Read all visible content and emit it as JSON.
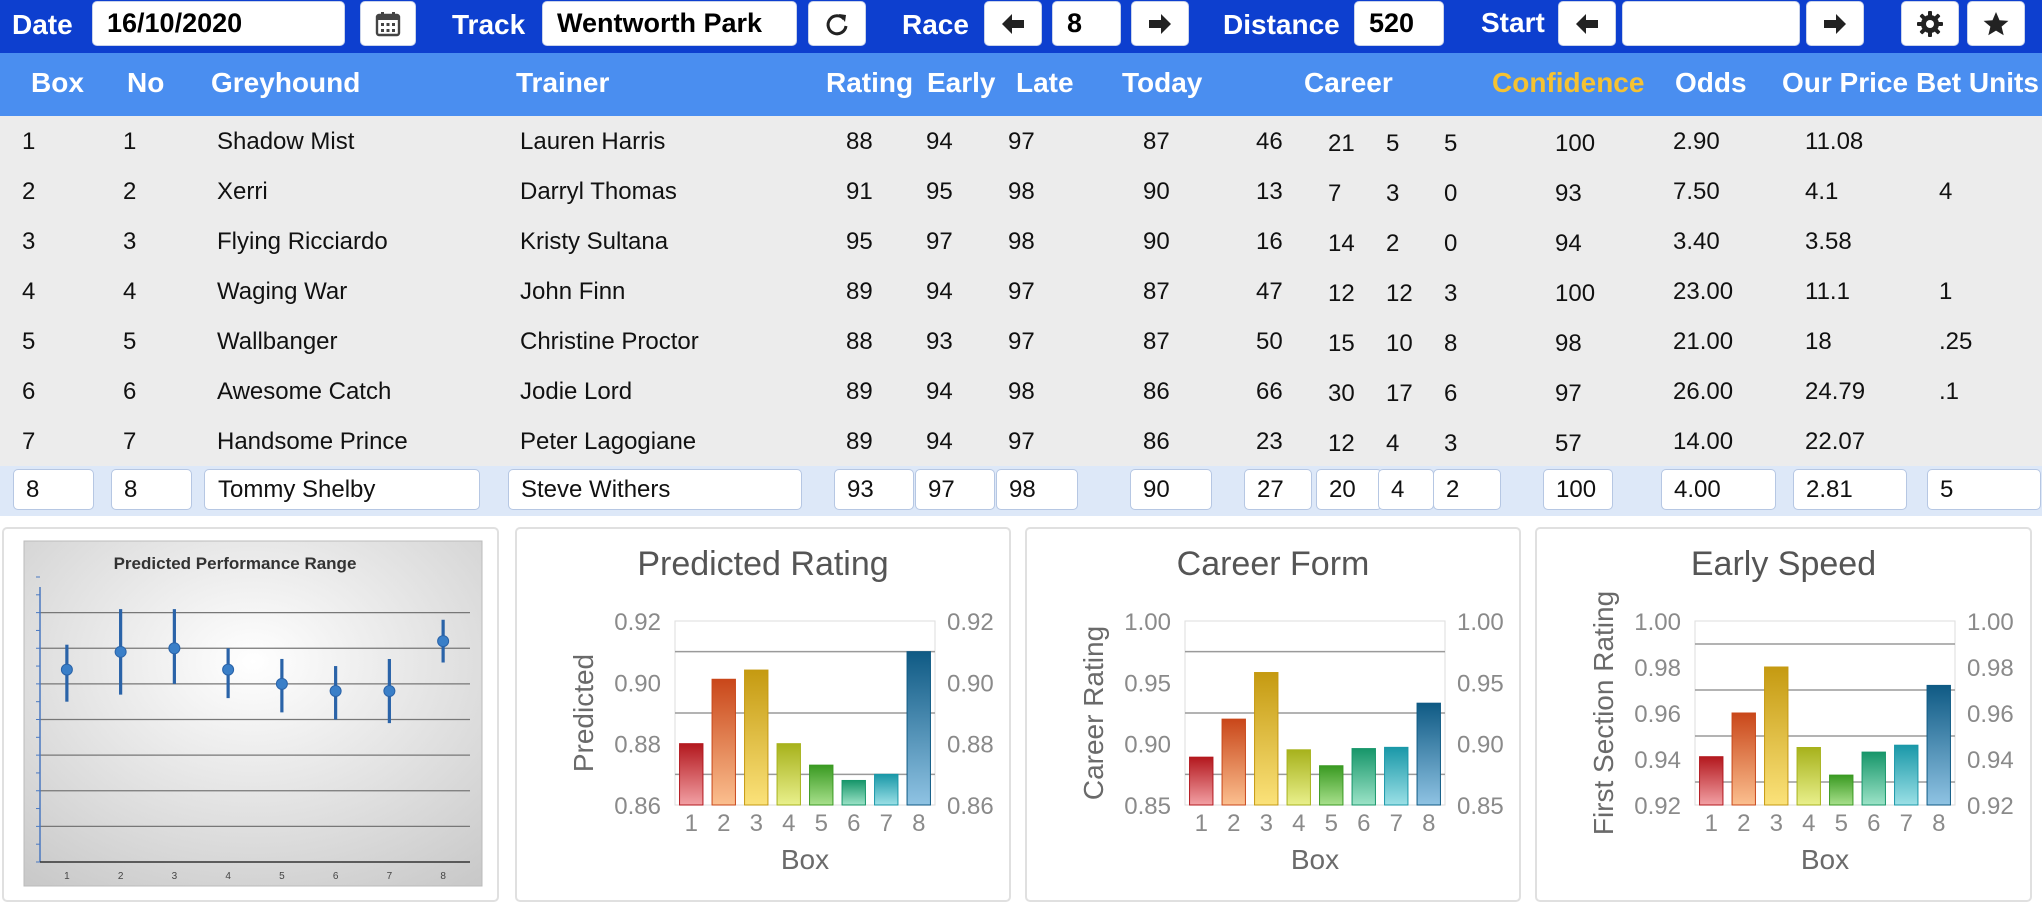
{
  "toolbar": {
    "date_label": "Date",
    "date_value": "16/10/2020",
    "track_label": "Track",
    "track_value": "Wentworth Park",
    "race_label": "Race",
    "race_value": "8",
    "distance_label": "Distance",
    "distance_value": "520",
    "start_label": "Start",
    "start_value": "",
    "icons": {
      "calendar": "calendar-icon",
      "refresh": "refresh-icon",
      "prev": "arrow-left-icon",
      "next": "arrow-right-icon",
      "settings": "gear-icon",
      "favourite": "star-icon"
    }
  },
  "table": {
    "headers": {
      "box": "Box",
      "no": "No",
      "greyhound": "Greyhound",
      "trainer": "Trainer",
      "rating": "Rating",
      "early": "Early",
      "late": "Late",
      "today": "Today",
      "career": "Career",
      "confidence": "Confidence",
      "odds": "Odds",
      "our_price": "Our Price",
      "bet_units": "Bet Units"
    },
    "rows": [
      {
        "box": "1",
        "no": "1",
        "greyhound": "Shadow Mist",
        "trainer": "Lauren Harris",
        "rating": "88",
        "early": "94",
        "late": "97",
        "today": "87",
        "c1": "46",
        "c2": "21",
        "c3": "5",
        "c4": "5",
        "confidence": "100",
        "odds": "2.90",
        "our_price": "11.08",
        "bet_units": ""
      },
      {
        "box": "2",
        "no": "2",
        "greyhound": "Xerri",
        "trainer": "Darryl Thomas",
        "rating": "91",
        "early": "95",
        "late": "98",
        "today": "90",
        "c1": "13",
        "c2": "7",
        "c3": "3",
        "c4": "0",
        "confidence": "93",
        "odds": "7.50",
        "our_price": "4.1",
        "bet_units": "4"
      },
      {
        "box": "3",
        "no": "3",
        "greyhound": "Flying Ricciardo",
        "trainer": "Kristy Sultana",
        "rating": "95",
        "early": "97",
        "late": "98",
        "today": "90",
        "c1": "16",
        "c2": "14",
        "c3": "2",
        "c4": "0",
        "confidence": "94",
        "odds": "3.40",
        "our_price": "3.58",
        "bet_units": ""
      },
      {
        "box": "4",
        "no": "4",
        "greyhound": "Waging War",
        "trainer": "John Finn",
        "rating": "89",
        "early": "94",
        "late": "97",
        "today": "87",
        "c1": "47",
        "c2": "12",
        "c3": "12",
        "c4": "3",
        "confidence": "100",
        "odds": "23.00",
        "our_price": "11.1",
        "bet_units": "1"
      },
      {
        "box": "5",
        "no": "5",
        "greyhound": "Wallbanger",
        "trainer": "Christine Proctor",
        "rating": "88",
        "early": "93",
        "late": "97",
        "today": "87",
        "c1": "50",
        "c2": "15",
        "c3": "10",
        "c4": "8",
        "confidence": "98",
        "odds": "21.00",
        "our_price": "18",
        "bet_units": ".25"
      },
      {
        "box": "6",
        "no": "6",
        "greyhound": "Awesome Catch",
        "trainer": "Jodie Lord",
        "rating": "89",
        "early": "94",
        "late": "98",
        "today": "86",
        "c1": "66",
        "c2": "30",
        "c3": "17",
        "c4": "6",
        "confidence": "97",
        "odds": "26.00",
        "our_price": "24.79",
        "bet_units": ".1"
      },
      {
        "box": "7",
        "no": "7",
        "greyhound": "Handsome Prince",
        "trainer": "Peter Lagogiane",
        "rating": "89",
        "early": "94",
        "late": "97",
        "today": "86",
        "c1": "23",
        "c2": "12",
        "c3": "4",
        "c4": "3",
        "confidence": "57",
        "odds": "14.00",
        "our_price": "22.07",
        "bet_units": ""
      }
    ],
    "selected_row": {
      "box": "8",
      "no": "8",
      "greyhound": "Tommy Shelby",
      "trainer": "Steve Withers",
      "rating": "93",
      "early": "97",
      "late": "98",
      "today": "90",
      "c1": "27",
      "c2": "20",
      "c3": "4",
      "c4": "2",
      "confidence": "100",
      "odds": "4.00",
      "our_price": "2.81",
      "bet_units": "5"
    }
  },
  "chart_data": [
    {
      "type": "scatter",
      "title": "Predicted Performance Range",
      "x": [
        "1",
        "2",
        "3",
        "4",
        "5",
        "6",
        "7",
        "8"
      ],
      "y": [
        0.894,
        0.899,
        0.9,
        0.894,
        0.89,
        0.888,
        0.888,
        0.902
      ],
      "error_low": [
        0.885,
        0.887,
        0.89,
        0.886,
        0.882,
        0.88,
        0.879,
        0.896
      ],
      "error_high": [
        0.901,
        0.911,
        0.911,
        0.9,
        0.897,
        0.895,
        0.897,
        0.908
      ],
      "ylim": [
        0.84,
        0.92
      ],
      "gridlines": [
        0.85,
        0.86,
        0.87,
        0.88,
        0.89,
        0.9,
        0.91
      ],
      "grid": true,
      "point_color": "#3a7fc8"
    },
    {
      "type": "bar",
      "title": "Predicted Rating",
      "categories": [
        "1",
        "2",
        "3",
        "4",
        "5",
        "6",
        "7",
        "8"
      ],
      "values": [
        0.88,
        0.901,
        0.904,
        0.88,
        0.873,
        0.868,
        0.87,
        0.91
      ],
      "xlabel": "Box",
      "ylabel": "Predicted",
      "ylim": [
        0.86,
        0.92
      ],
      "ticks": [
        "0.86",
        "0.88",
        "0.90",
        "0.92"
      ],
      "grid": true
    },
    {
      "type": "bar",
      "title": "Career Form",
      "categories": [
        "1",
        "2",
        "3",
        "4",
        "5",
        "6",
        "7",
        "8"
      ],
      "values": [
        0.889,
        0.92,
        0.958,
        0.895,
        0.882,
        0.896,
        0.897,
        0.933
      ],
      "xlabel": "Box",
      "ylabel": "Career Rating",
      "ylim": [
        0.85,
        1.0
      ],
      "ticks": [
        "0.85",
        "0.90",
        "0.95",
        "1.00"
      ],
      "grid": true
    },
    {
      "type": "bar",
      "title": "Early Speed",
      "categories": [
        "1",
        "2",
        "3",
        "4",
        "5",
        "6",
        "7",
        "8"
      ],
      "values": [
        0.941,
        0.96,
        0.98,
        0.945,
        0.933,
        0.943,
        0.946,
        0.972
      ],
      "xlabel": "Box",
      "ylabel": "First Section Rating",
      "ylim": [
        0.92,
        1.0
      ],
      "ticks": [
        "0.92",
        "0.94",
        "0.96",
        "0.98",
        "1.00"
      ],
      "grid": true
    }
  ],
  "bar_colors": [
    [
      "#f2a0a4",
      "#b3181e"
    ],
    [
      "#fbbf8f",
      "#c9471a"
    ],
    [
      "#fbe27a",
      "#c59a11"
    ],
    [
      "#e9f08c",
      "#a7b21c"
    ],
    [
      "#a8e08c",
      "#3a9a22"
    ],
    [
      "#9ce3c7",
      "#17966a"
    ],
    [
      "#9be0e6",
      "#1a98a8"
    ],
    [
      "#8fc3e3",
      "#0f5a84"
    ]
  ]
}
